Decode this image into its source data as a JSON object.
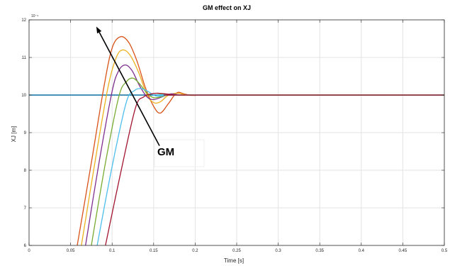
{
  "chart_data": {
    "type": "line",
    "title": "GM effect on XJ",
    "xlabel": "Time [s]",
    "ylabel": "XJ [m]",
    "y_exponent_label": "10⁻⁹",
    "xlim": [
      0,
      0.5
    ],
    "ylim": [
      6,
      12
    ],
    "xticks": [
      0,
      0.05,
      0.1,
      0.15,
      0.2,
      0.25,
      0.3,
      0.35,
      0.4,
      0.45,
      0.5
    ],
    "xtick_labels": [
      "0",
      "0.05",
      "0.1",
      "0.15",
      "0.2",
      "0.25",
      "0.3",
      "0.35",
      "0.4",
      "0.45",
      "0.5"
    ],
    "yticks": [
      6,
      7,
      8,
      9,
      10,
      11,
      12
    ],
    "ytick_labels": [
      "6",
      "7",
      "8",
      "9",
      "10",
      "11",
      "12"
    ],
    "grid": true,
    "annotation": {
      "text": "GM",
      "arrow_from": [
        0.157,
        8.65
      ],
      "arrow_to": [
        0.081,
        11.82
      ]
    },
    "reference_line": {
      "y": 10,
      "color": "#0b6fa4"
    },
    "series": [
      {
        "color": "#d95319",
        "points": [
          [
            0.058,
            6
          ],
          [
            0.075,
            8.2
          ],
          [
            0.09,
            10.2
          ],
          [
            0.1,
            11.25
          ],
          [
            0.11,
            11.55
          ],
          [
            0.12,
            11.4
          ],
          [
            0.13,
            10.9
          ],
          [
            0.14,
            10.2
          ],
          [
            0.15,
            9.7
          ],
          [
            0.158,
            9.52
          ],
          [
            0.168,
            9.78
          ],
          [
            0.178,
            10.06
          ],
          [
            0.188,
            10.02
          ],
          [
            0.2,
            9.99
          ],
          [
            0.22,
            10.0
          ],
          [
            0.5,
            10.0
          ]
        ]
      },
      {
        "color": "#edb120",
        "points": [
          [
            0.063,
            6
          ],
          [
            0.08,
            8.3
          ],
          [
            0.095,
            10.2
          ],
          [
            0.105,
            11.0
          ],
          [
            0.113,
            11.2
          ],
          [
            0.122,
            11.05
          ],
          [
            0.132,
            10.6
          ],
          [
            0.142,
            10.0
          ],
          [
            0.15,
            9.8
          ],
          [
            0.158,
            9.82
          ],
          [
            0.168,
            10.0
          ],
          [
            0.18,
            10.05
          ],
          [
            0.19,
            10.0
          ],
          [
            0.21,
            10.0
          ],
          [
            0.5,
            10.0
          ]
        ]
      },
      {
        "color": "#7e2f8e",
        "points": [
          [
            0.068,
            6
          ],
          [
            0.085,
            8.3
          ],
          [
            0.1,
            10.1
          ],
          [
            0.108,
            10.65
          ],
          [
            0.116,
            10.8
          ],
          [
            0.124,
            10.65
          ],
          [
            0.133,
            10.25
          ],
          [
            0.142,
            9.95
          ],
          [
            0.15,
            9.88
          ],
          [
            0.16,
            9.95
          ],
          [
            0.17,
            10.03
          ],
          [
            0.18,
            10.01
          ],
          [
            0.2,
            10.0
          ],
          [
            0.5,
            10.0
          ]
        ]
      },
      {
        "color": "#77ac30",
        "points": [
          [
            0.075,
            6
          ],
          [
            0.092,
            8.2
          ],
          [
            0.108,
            9.95
          ],
          [
            0.117,
            10.35
          ],
          [
            0.125,
            10.45
          ],
          [
            0.133,
            10.3
          ],
          [
            0.142,
            10.05
          ],
          [
            0.15,
            9.93
          ],
          [
            0.16,
            9.96
          ],
          [
            0.17,
            10.02
          ],
          [
            0.18,
            10.0
          ],
          [
            0.5,
            10.0
          ]
        ]
      },
      {
        "color": "#4dbeee",
        "points": [
          [
            0.082,
            6
          ],
          [
            0.1,
            8.1
          ],
          [
            0.117,
            9.8
          ],
          [
            0.127,
            10.12
          ],
          [
            0.135,
            10.17
          ],
          [
            0.143,
            10.1
          ],
          [
            0.152,
            9.98
          ],
          [
            0.16,
            9.98
          ],
          [
            0.17,
            10.01
          ],
          [
            0.18,
            10.0
          ],
          [
            0.5,
            10.0
          ]
        ]
      },
      {
        "color": "#a2142f",
        "points": [
          [
            0.092,
            6
          ],
          [
            0.11,
            7.9
          ],
          [
            0.128,
            9.65
          ],
          [
            0.138,
            9.95
          ],
          [
            0.147,
            10.03
          ],
          [
            0.155,
            10.05
          ],
          [
            0.165,
            10.03
          ],
          [
            0.175,
            10.0
          ],
          [
            0.19,
            10.0
          ],
          [
            0.5,
            10.0
          ]
        ]
      }
    ]
  }
}
